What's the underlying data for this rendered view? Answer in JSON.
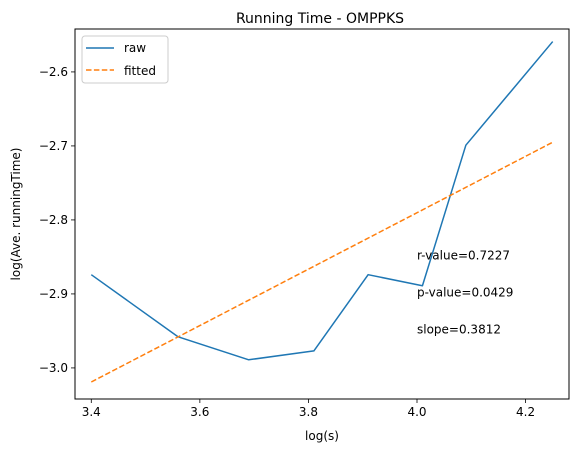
{
  "chart_data": {
    "type": "line",
    "title": "Running Time - OMPPKS",
    "xlabel": "log(s)",
    "ylabel": "log(Ave. runningTime)",
    "xlim": [
      3.37,
      4.28
    ],
    "ylim": [
      -3.042,
      -2.542
    ],
    "xticks": [
      3.4,
      3.6,
      3.8,
      4.0,
      4.2
    ],
    "xtick_labels": [
      "3.4",
      "3.6",
      "3.8",
      "4.0",
      "4.2"
    ],
    "yticks": [
      -3.0,
      -2.9,
      -2.8,
      -2.7,
      -2.6
    ],
    "ytick_labels": [
      "−3.0",
      "−2.9",
      "−2.8",
      "−2.7",
      "−2.6"
    ],
    "grid": false,
    "legend_position": "top-left",
    "series": [
      {
        "name": "raw",
        "style": "solid",
        "color": "#1f77b4",
        "x": [
          3.4,
          3.56,
          3.69,
          3.81,
          3.91,
          4.01,
          4.09,
          4.25
        ],
        "y": [
          -2.874,
          -2.958,
          -2.989,
          -2.977,
          -2.874,
          -2.889,
          -2.699,
          -2.559
        ]
      },
      {
        "name": "fitted",
        "style": "dashed",
        "color": "#ff7f0e",
        "x": [
          3.4,
          4.25
        ],
        "y": [
          -3.019,
          -2.695
        ]
      }
    ],
    "annotations": [
      {
        "text": "r-value=0.7227",
        "x": 4.0,
        "y": -2.848
      },
      {
        "text": "p-value=0.0429",
        "x": 4.0,
        "y": -2.898
      },
      {
        "text": "slope=0.3812",
        "x": 4.0,
        "y": -2.948
      }
    ]
  }
}
